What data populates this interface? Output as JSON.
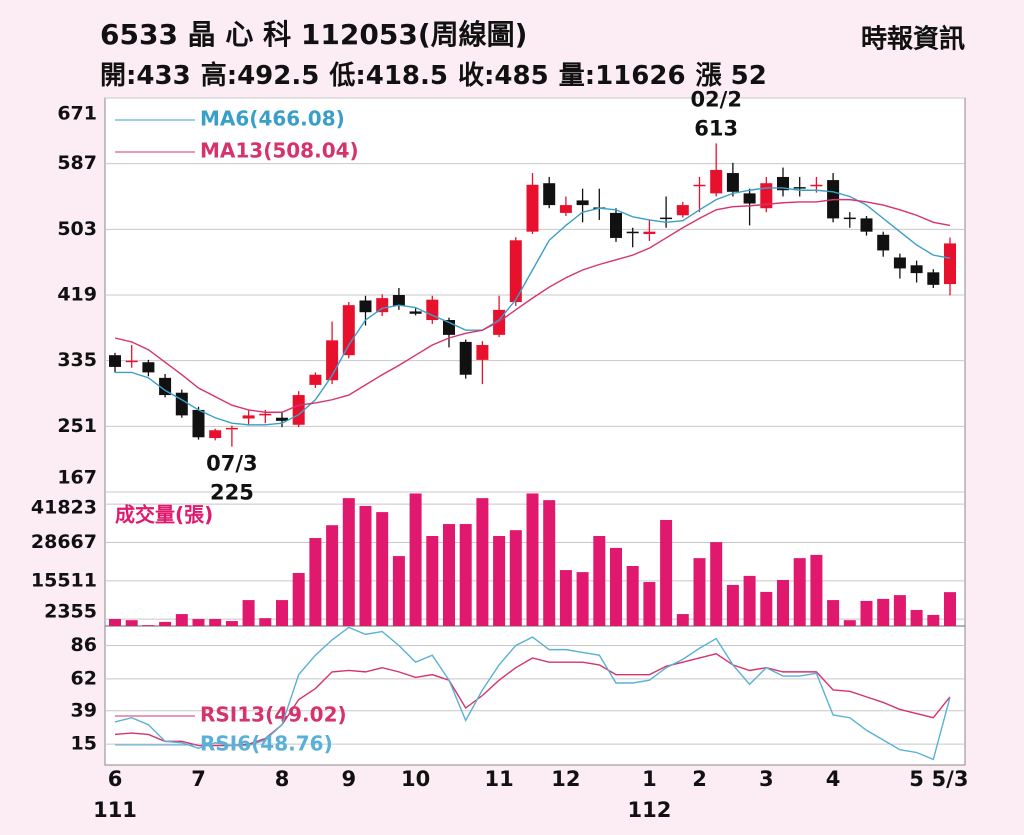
{
  "header": {
    "title": "6533 晶 心 科 112053(周線圖)",
    "source": "時報資訊",
    "stats": [
      {
        "label": "開:",
        "value": 433
      },
      {
        "label": "高:",
        "value": 492.5
      },
      {
        "label": "低:",
        "value": 418.5
      },
      {
        "label": "收:",
        "value": 485
      },
      {
        "label": "量:",
        "value": 11626
      },
      {
        "label": "漲 ",
        "value": 52
      }
    ]
  },
  "chart_data": [
    {
      "type": "candlestick",
      "up_color": "#e8112d",
      "down_color": "#111111",
      "open": [
        342,
        335,
        333,
        313,
        294,
        272,
        236,
        248,
        261,
        265,
        262,
        253,
        304,
        310,
        342,
        412,
        397,
        419,
        398,
        387,
        387,
        359,
        336,
        368,
        410,
        500,
        562,
        524,
        540,
        531,
        524,
        500,
        497,
        518,
        521,
        560,
        549,
        575,
        549,
        530,
        570,
        557,
        560,
        566,
        518,
        517,
        496,
        467,
        457,
        448,
        433
      ],
      "high": [
        345,
        355,
        336,
        318,
        298,
        276,
        248,
        252,
        272,
        272,
        270,
        296,
        320,
        385,
        410,
        418,
        420,
        428,
        402,
        418,
        390,
        362,
        360,
        418,
        493,
        575,
        570,
        545,
        555,
        555,
        530,
        505,
        515,
        545,
        538,
        570,
        613,
        588,
        555,
        570,
        582,
        570,
        570,
        575,
        525,
        520,
        500,
        472,
        463,
        452,
        492.5
      ],
      "low": [
        320,
        326,
        315,
        288,
        262,
        234,
        233,
        225,
        252,
        255,
        250,
        250,
        300,
        305,
        338,
        380,
        392,
        400,
        393,
        382,
        352,
        312,
        305,
        365,
        405,
        497,
        530,
        520,
        512,
        515,
        487,
        480,
        488,
        505,
        518,
        525,
        545,
        545,
        508,
        525,
        545,
        545,
        550,
        512,
        505,
        495,
        468,
        440,
        435,
        428,
        418.5
      ],
      "close": [
        327,
        335,
        320,
        291,
        265,
        237,
        246,
        249,
        265,
        267,
        258,
        291,
        317,
        361,
        406,
        397,
        415,
        405,
        395,
        413,
        368,
        317,
        355,
        400,
        489,
        560,
        534,
        534,
        534,
        530,
        492,
        498,
        500,
        517,
        534,
        560,
        579,
        551,
        536,
        562,
        553,
        556,
        560,
        517,
        517,
        500,
        476,
        453,
        447,
        432,
        485
      ],
      "series": [
        {
          "name": "MA6(466.08)",
          "color": "#3a9fc8",
          "values": [
            320,
            320,
            313,
            297,
            285,
            272,
            262,
            255,
            253,
            253,
            255,
            266,
            285,
            316,
            355,
            387,
            402,
            406,
            403,
            393,
            384,
            374,
            374,
            387,
            413,
            451,
            489,
            508,
            525,
            530,
            528,
            519,
            515,
            512,
            514,
            528,
            541,
            549,
            553,
            556,
            556,
            553,
            553,
            551,
            545,
            534,
            517,
            500,
            483,
            470,
            466.08
          ]
        },
        {
          "name": "MA13(508.04)",
          "color": "#d6336c",
          "values": [
            364,
            359,
            349,
            333,
            317,
            300,
            289,
            278,
            272,
            269,
            269,
            278,
            281,
            285,
            291,
            304,
            317,
            329,
            342,
            355,
            364,
            370,
            374,
            385,
            400,
            415,
            429,
            441,
            451,
            458,
            464,
            470,
            479,
            492,
            505,
            517,
            528,
            532,
            533,
            535,
            537,
            538,
            538,
            541,
            541,
            538,
            534,
            528,
            521,
            512,
            508.04
          ]
        }
      ],
      "annotations": [
        {
          "date": "02/2",
          "value": 613
        },
        {
          "date": "07/3",
          "value": 225
        }
      ],
      "ylim": [
        167,
        671
      ],
      "yticks": [
        167,
        251,
        335,
        419,
        503,
        587,
        671
      ],
      "grid": true
    },
    {
      "type": "bar",
      "title": "成交量(張)",
      "color": "#e0196e",
      "values": [
        2400,
        2000,
        300,
        1400,
        4100,
        2400,
        2400,
        1700,
        8900,
        2700,
        8900,
        18200,
        30200,
        34600,
        43900,
        41200,
        39100,
        24000,
        45500,
        30900,
        35000,
        35000,
        43900,
        30900,
        32900,
        45500,
        43200,
        19200,
        18500,
        30900,
        26800,
        20600,
        15100,
        36400,
        4100,
        23300,
        28800,
        14100,
        17200,
        11700,
        15800,
        23300,
        24400,
        8900,
        2000,
        8600,
        9300,
        10600,
        5500,
        3800,
        11626
      ],
      "ylim": [
        0,
        46000
      ],
      "yticks": [
        2355,
        15511,
        28667,
        41823
      ],
      "grid": true
    },
    {
      "type": "line",
      "categories": [
        "6",
        null,
        null,
        null,
        null,
        "7",
        null,
        null,
        null,
        null,
        "8",
        null,
        null,
        null,
        "9",
        null,
        null,
        null,
        "10",
        null,
        null,
        null,
        null,
        "11",
        null,
        null,
        null,
        "12",
        null,
        null,
        null,
        null,
        "1",
        null,
        null,
        "2",
        null,
        null,
        null,
        "3",
        null,
        null,
        null,
        "4",
        null,
        null,
        null,
        null,
        "5",
        null,
        "5/3"
      ],
      "years": [
        "111",
        null,
        null,
        null,
        null,
        null,
        null,
        null,
        null,
        null,
        null,
        null,
        null,
        null,
        null,
        null,
        null,
        null,
        null,
        null,
        null,
        null,
        null,
        null,
        null,
        null,
        null,
        null,
        null,
        null,
        null,
        null,
        "112",
        null,
        null,
        null,
        null,
        null,
        null,
        null,
        null,
        null,
        null,
        null,
        null,
        null,
        null,
        null,
        null,
        null,
        null
      ],
      "series": [
        {
          "name": "RSI13(49.02)",
          "color": "#d6336c",
          "values": [
            22,
            23,
            22,
            17,
            17,
            14,
            14,
            14,
            15,
            19,
            29,
            47,
            55,
            67,
            68,
            67,
            70,
            67,
            63,
            65,
            61,
            41,
            50,
            61,
            70,
            77,
            74,
            74,
            74,
            72,
            65,
            65,
            65,
            71,
            74,
            77,
            80,
            72,
            68,
            70,
            67,
            67,
            67,
            54,
            53,
            49,
            45,
            40,
            37,
            34,
            49.02
          ]
        },
        {
          "name": "RSI6(48.76)",
          "color": "#5ab0d6",
          "values": [
            31,
            34,
            29,
            17,
            16,
            12,
            16,
            14,
            14,
            18,
            29,
            65,
            79,
            90,
            99,
            94,
            96,
            86,
            74,
            79,
            61,
            32,
            54,
            72,
            86,
            92,
            83,
            83,
            81,
            79,
            59,
            59,
            61,
            70,
            76,
            84,
            91,
            72,
            58,
            70,
            64,
            64,
            66,
            36,
            34,
            25,
            18,
            11,
            9,
            4,
            48.76
          ]
        }
      ],
      "ylim": [
        0,
        100
      ],
      "yticks": [
        15,
        39,
        62,
        86
      ],
      "grid": true
    }
  ]
}
